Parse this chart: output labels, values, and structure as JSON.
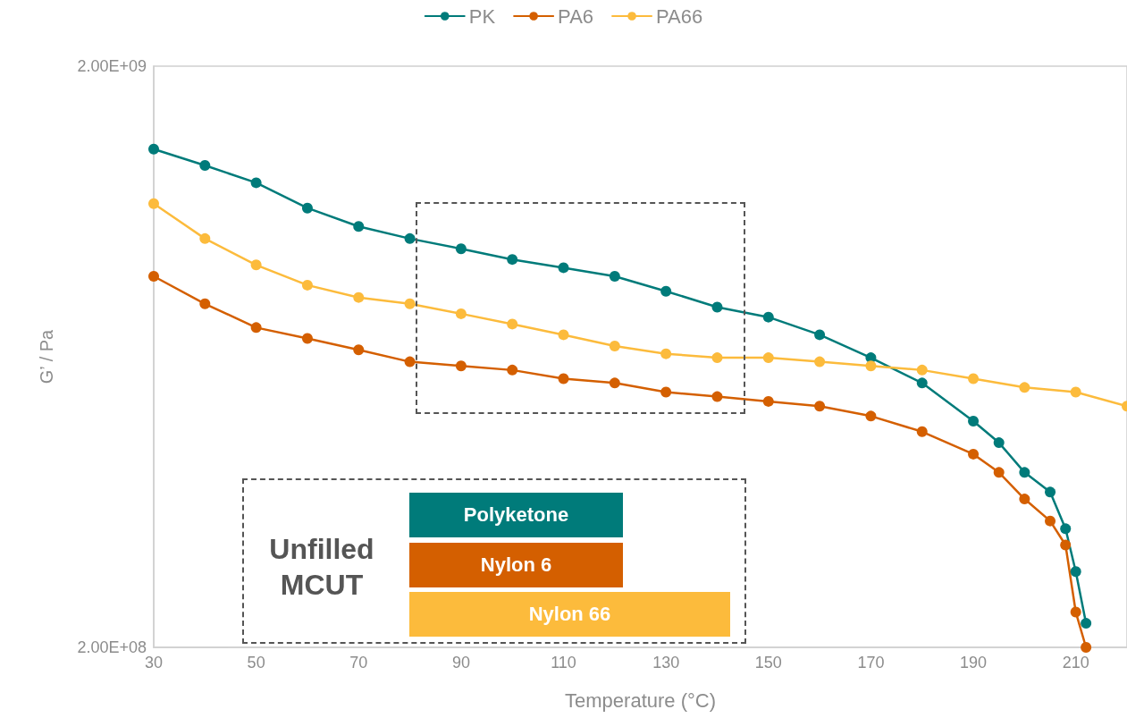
{
  "chart_data": {
    "type": "line",
    "xlabel": "Temperature (°C)",
    "ylabel": "G’ / Pa",
    "log": "y",
    "legend": "top",
    "marker": "circle",
    "line_style": "solid",
    "xlim": [
      30,
      220
    ],
    "xticks": [
      30,
      50,
      70,
      90,
      110,
      130,
      150,
      170,
      190,
      210
    ],
    "ylim": [
      200000000,
      2000000000
    ],
    "yticks": [
      {
        "value": 200000000,
        "label": "2.00E+08"
      },
      {
        "value": 2000000000,
        "label": "2.00E+09"
      }
    ],
    "annotations": [
      "Unfilled MCUT",
      "Polyketone",
      "Nylon 6",
      "Nylon 66"
    ],
    "series": [
      {
        "name": "PK",
        "color": "#007b7a",
        "x": [
          30,
          40,
          50,
          60,
          70,
          80,
          90,
          100,
          110,
          120,
          130,
          140,
          150,
          160,
          170,
          180,
          190,
          195,
          200,
          205,
          208,
          210,
          212
        ],
        "values": [
          1440000000,
          1350000000,
          1260000000,
          1140000000,
          1060000000,
          1010000000,
          970000000,
          930000000,
          900000000,
          870000000,
          820000000,
          770000000,
          740000000,
          690000000,
          630000000,
          570000000,
          490000000,
          450000000,
          400000000,
          370000000,
          320000000,
          270000000,
          220000000
        ]
      },
      {
        "name": "PA6",
        "color": "#d45f00",
        "x": [
          30,
          40,
          50,
          60,
          70,
          80,
          90,
          100,
          110,
          120,
          130,
          140,
          150,
          160,
          170,
          180,
          190,
          195,
          200,
          205,
          208,
          210,
          212
        ],
        "values": [
          870000000,
          780000000,
          710000000,
          680000000,
          650000000,
          620000000,
          610000000,
          600000000,
          580000000,
          570000000,
          550000000,
          540000000,
          530000000,
          520000000,
          500000000,
          470000000,
          430000000,
          400000000,
          360000000,
          330000000,
          300000000,
          230000000,
          200000000
        ]
      },
      {
        "name": "PA66",
        "color": "#fcbb3c",
        "x": [
          30,
          40,
          50,
          60,
          70,
          80,
          90,
          100,
          110,
          120,
          130,
          140,
          150,
          160,
          170,
          180,
          190,
          200,
          210,
          220
        ],
        "values": [
          1160000000,
          1010000000,
          910000000,
          840000000,
          800000000,
          780000000,
          750000000,
          720000000,
          690000000,
          660000000,
          640000000,
          630000000,
          630000000,
          620000000,
          610000000,
          600000000,
          580000000,
          560000000,
          550000000,
          520000000
        ]
      }
    ]
  }
}
